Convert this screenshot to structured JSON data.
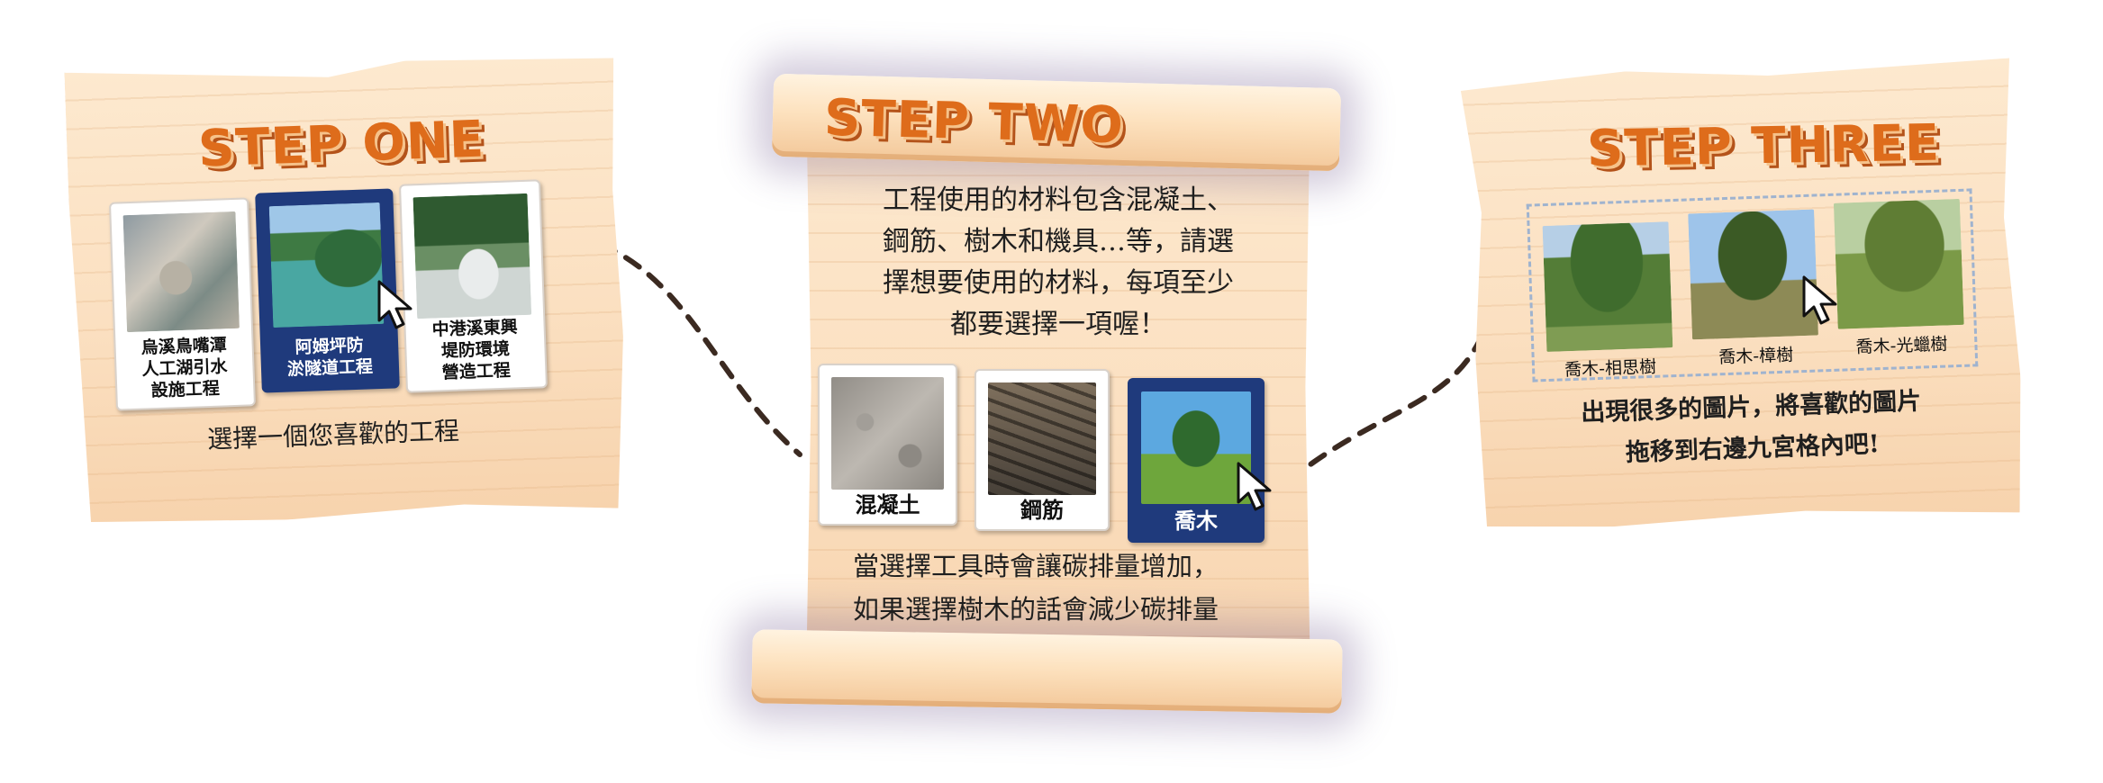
{
  "steps": [
    {
      "title": "STEP ONE",
      "cards": [
        {
          "caption": "烏溪鳥嘴潭\n人工湖引水\n設施工程",
          "selected": false
        },
        {
          "caption": "阿姆坪防\n淤隧道工程",
          "selected": true
        },
        {
          "caption": "中港溪東興\n堤防環境\n營造工程",
          "selected": false
        }
      ],
      "instruction": "選擇一個您喜歡的工程"
    },
    {
      "title": "STEP TWO",
      "intro_lines": [
        "工程使用的材料包含混凝土、",
        "鋼筋、樹木和機具…等，請選",
        "擇想要使用的材料，每項至少",
        "都要選擇一項喔！"
      ],
      "cards": [
        {
          "caption": "混凝土",
          "selected": false
        },
        {
          "caption": "鋼筋",
          "selected": false
        },
        {
          "caption": "喬木",
          "selected": true
        }
      ],
      "note_lines": [
        "當選擇工具時會讓碳排量增加，",
        "如果選擇樹木的話會減少碳排量"
      ]
    },
    {
      "title": "STEP THREE",
      "cards": [
        {
          "caption": "喬木-相思樹"
        },
        {
          "caption": "喬木-樟樹"
        },
        {
          "caption": "喬木-光蠟樹"
        }
      ],
      "instruction_lines": [
        "出現很多的圖片，將喜歡的圖片",
        "拖移到右邊九宮格內吧!"
      ]
    }
  ],
  "colors": {
    "title": "#de6c1b",
    "selected_card": "#1f3a7c",
    "connector": "#3b2a21"
  },
  "icons": [
    "cursor-icon"
  ]
}
